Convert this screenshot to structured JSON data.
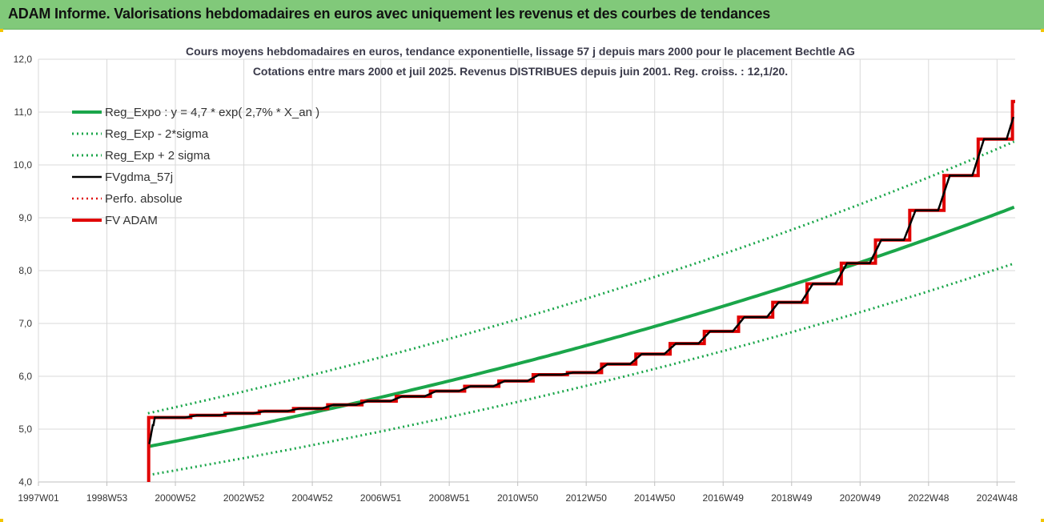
{
  "header": {
    "title": "ADAM Informe. Valorisations hebdomadaires en euros avec uniquement les revenus et des courbes de tendances"
  },
  "chart_data": {
    "type": "line",
    "title": "Cours moyens hebdomadaires en euros, tendance exponentielle, lissage 57 j depuis mars 2000 pour le placement Bechtle AG",
    "subtitle": "Cotations entre mars 2000 et juil 2025. Revenus DISTRIBUES depuis juin 2001. Reg. croiss. : 12,1/20.",
    "xlabel": "",
    "ylabel": "",
    "x_tick_labels": [
      "1997W01",
      "1998W53",
      "2000W52",
      "2002W52",
      "2004W52",
      "2006W51",
      "2008W51",
      "2010W50",
      "2012W50",
      "2014W50",
      "2016W49",
      "2018W49",
      "2020W49",
      "2022W48",
      "2024W48"
    ],
    "x_tick_years": [
      1997.0,
      1999.0,
      2001.0,
      2003.0,
      2005.0,
      2007.0,
      2009.0,
      2011.0,
      2013.0,
      2015.0,
      2017.0,
      2019.0,
      2021.0,
      2023.0,
      2025.0
    ],
    "xlim": [
      1997.0,
      2025.53
    ],
    "ylim": [
      4.0,
      12.0
    ],
    "y_ticks": [
      4.0,
      5.0,
      6.0,
      7.0,
      8.0,
      9.0,
      10.0,
      11.0,
      12.0
    ],
    "y_tick_labels": [
      "4,0",
      "5,0",
      "6,0",
      "7,0",
      "8,0",
      "9,0",
      "10,0",
      "11,0",
      "12,0"
    ],
    "grid": true,
    "legend_position": "top-left",
    "x_start": 2000.2,
    "x_end": 2025.53,
    "series": [
      {
        "name": "Reg_Expo : y = 4,7 * exp( 2,7% *  X_an )",
        "kind": "exp",
        "a": 4.67,
        "rate": 0.0268,
        "color": "#1aa64a",
        "style": "solid",
        "width": 4
      },
      {
        "name": "Reg_Exp - 2*sigma",
        "kind": "exp",
        "a": 4.13,
        "rate": 0.0268,
        "color": "#1aa64a",
        "style": "dotted",
        "width": 3
      },
      {
        "name": "Reg_Exp + 2 sigma",
        "kind": "exp",
        "a": 5.3,
        "rate": 0.0268,
        "color": "#1aa64a",
        "style": "dotted",
        "width": 3
      },
      {
        "name": "FVgdma_57j",
        "kind": "smooth",
        "color": "#000000",
        "style": "solid",
        "width": 2.5
      },
      {
        "name": "Perfo. absolue",
        "kind": "none",
        "color": "#e00000",
        "style": "dotted",
        "width": 2.5
      },
      {
        "name": "FV ADAM",
        "kind": "step",
        "color": "#e00000",
        "style": "solid",
        "width": 4,
        "start_value": 4.0,
        "step_x": [
          2000.22,
          2001.45,
          2002.45,
          2003.45,
          2004.45,
          2005.45,
          2006.45,
          2007.45,
          2008.45,
          2009.45,
          2010.45,
          2011.45,
          2012.45,
          2013.45,
          2014.45,
          2015.45,
          2016.45,
          2017.45,
          2018.45,
          2019.45,
          2020.45,
          2021.45,
          2022.45,
          2023.45,
          2024.45,
          2025.45
        ],
        "step_values": [
          5.22,
          5.26,
          5.3,
          5.34,
          5.39,
          5.46,
          5.53,
          5.62,
          5.72,
          5.81,
          5.91,
          6.03,
          6.07,
          6.23,
          6.42,
          6.62,
          6.85,
          7.12,
          7.4,
          7.75,
          8.14,
          8.58,
          9.14,
          9.8,
          10.49,
          11.2
        ]
      }
    ]
  }
}
